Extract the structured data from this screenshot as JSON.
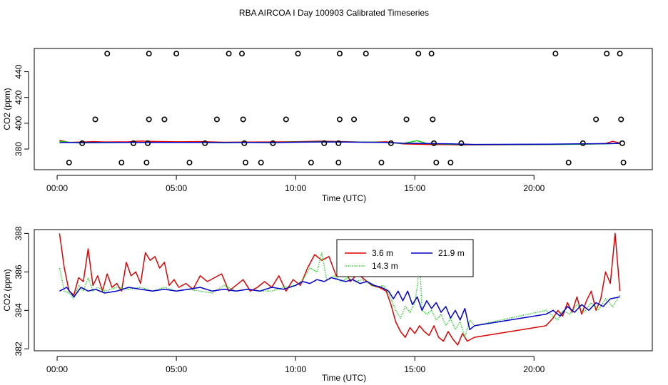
{
  "title": "RBA AIRCOA I  Day 100903  Calibrated Timeseries",
  "colors": {
    "s1": "#e00000",
    "s2": "#00cc00",
    "s3": "#0000cc",
    "axis": "#000000"
  },
  "chart_data": [
    {
      "type": "scatter+line",
      "ylabel": "CO2 (ppm)",
      "xlabel": "Time (UTC)",
      "xlim": [
        -0.96,
        24.96
      ],
      "ylim": [
        364,
        458
      ],
      "x_ticks": [
        0,
        5,
        10,
        15,
        20
      ],
      "x_tick_labels": [
        "00:00",
        "05:00",
        "10:00",
        "15:00",
        "20:00"
      ],
      "y_ticks": [
        380,
        400,
        420,
        440
      ],
      "y_tick_labels": [
        "380",
        "400",
        "420",
        "440"
      ],
      "calibration_points": {
        "high": {
          "y": 454,
          "x": [
            2.1,
            3.85,
            5.0,
            7.2,
            7.75,
            10.1,
            11.85,
            12.95,
            15.15,
            15.7,
            20.9,
            23.05,
            23.6
          ]
        },
        "mid": {
          "y": 403,
          "x": [
            1.6,
            3.85,
            4.5,
            6.7,
            7.8,
            9.6,
            11.85,
            12.45,
            14.65,
            15.75,
            22.6,
            23.65
          ]
        },
        "low": {
          "y": 384.5,
          "x": [
            1.05,
            3.2,
            3.8,
            6.2,
            7.85,
            9.05,
            11.2,
            11.8,
            14.0,
            15.8,
            16.95,
            22.05,
            23.7
          ]
        },
        "bottom": {
          "y": 369.5,
          "x": [
            0.5,
            2.7,
            3.75,
            5.55,
            7.9,
            8.55,
            10.65,
            11.8,
            13.6,
            15.9,
            16.5,
            21.45,
            23.75
          ]
        }
      },
      "series": [
        {
          "name": "3.6 m",
          "color": "#e00000",
          "x": [
            0.1,
            0.5,
            1.0,
            1.5,
            2.0,
            3.0,
            3.5,
            4.0,
            5.0,
            6.0,
            7.0,
            8.0,
            9.0,
            10.0,
            11.0,
            12.0,
            13.0,
            13.8,
            14.5,
            15.5,
            16.5,
            17.0,
            18.0,
            20.5,
            21.5,
            22.5,
            23.0,
            23.3,
            23.6
          ],
          "values": [
            386.8,
            385.2,
            385.4,
            385.8,
            385.5,
            385.6,
            386.2,
            385.9,
            385.6,
            385.8,
            385.3,
            385.4,
            385.5,
            385.7,
            386.1,
            385.8,
            385.3,
            385.6,
            384.0,
            383.6,
            383.4,
            383.2,
            383.3,
            383.5,
            383.8,
            384.0,
            384.3,
            386.0,
            384.6
          ]
        },
        {
          "name": "14.3 m",
          "color": "#00cc00",
          "x": [
            0.1,
            0.5,
            1.0,
            2.0,
            3.0,
            4.0,
            5.0,
            6.0,
            7.0,
            8.0,
            9.0,
            10.0,
            11.0,
            12.0,
            13.0,
            13.8,
            14.5,
            15.1,
            15.5,
            16.5,
            17.5,
            20.5,
            22.0,
            23.0,
            23.6
          ],
          "values": [
            386.0,
            385.3,
            385.0,
            385.2,
            385.2,
            385.2,
            385.1,
            385.1,
            385.0,
            385.1,
            385.0,
            385.4,
            385.6,
            385.5,
            385.4,
            385.2,
            384.3,
            386.5,
            384.3,
            383.8,
            383.4,
            383.6,
            383.8,
            384.1,
            384.4
          ]
        },
        {
          "name": "21.9 m",
          "color": "#0000cc",
          "x": [
            0.1,
            0.5,
            1.0,
            2.0,
            3.0,
            4.0,
            5.0,
            6.0,
            7.0,
            8.0,
            9.0,
            10.0,
            11.0,
            12.0,
            13.0,
            13.8,
            14.5,
            15.5,
            16.5,
            17.5,
            20.5,
            22.0,
            23.0,
            23.6
          ],
          "values": [
            385.0,
            385.1,
            384.9,
            385.0,
            385.1,
            385.1,
            385.1,
            385.1,
            385.0,
            385.1,
            385.0,
            385.3,
            385.5,
            385.4,
            385.3,
            385.2,
            384.5,
            384.3,
            384.0,
            383.6,
            383.8,
            384.0,
            384.2,
            384.4
          ]
        }
      ]
    },
    {
      "type": "line",
      "ylabel": "CO2 (ppm)",
      "xlabel": "Time (UTC)",
      "xlim": [
        -0.96,
        24.96
      ],
      "ylim": [
        381.9,
        388.2
      ],
      "x_ticks": [
        0,
        5,
        10,
        15,
        20
      ],
      "x_tick_labels": [
        "00:00",
        "05:00",
        "10:00",
        "15:00",
        "20:00"
      ],
      "y_ticks": [
        382,
        384,
        386,
        388
      ],
      "y_tick_labels": [
        "382",
        "384",
        "386",
        "388"
      ],
      "legend": {
        "entries": [
          "3.6 m",
          "14.3 m",
          "21.9 m"
        ],
        "placement": "top-center"
      },
      "series": [
        {
          "name": "3.6 m",
          "color": "#e00000",
          "x": [
            0.1,
            0.3,
            0.5,
            0.7,
            0.9,
            1.1,
            1.3,
            1.5,
            1.7,
            1.9,
            2.1,
            2.3,
            2.5,
            2.7,
            2.9,
            3.1,
            3.3,
            3.5,
            3.7,
            3.9,
            4.1,
            4.3,
            4.5,
            4.7,
            4.9,
            5.1,
            5.4,
            5.7,
            6.0,
            6.3,
            6.6,
            6.9,
            7.2,
            7.5,
            7.8,
            8.1,
            8.4,
            8.7,
            9.0,
            9.3,
            9.6,
            9.9,
            10.2,
            10.5,
            10.8,
            11.1,
            11.4,
            11.7,
            12.0,
            12.3,
            12.6,
            12.9,
            13.2,
            13.5,
            13.8,
            14.0,
            14.2,
            14.4,
            14.6,
            14.8,
            15.0,
            15.2,
            15.4,
            15.6,
            15.8,
            16.0,
            16.2,
            16.4,
            16.6,
            16.8,
            17.0,
            17.2,
            17.5,
            20.5,
            20.8,
            21.0,
            21.2,
            21.4,
            21.6,
            21.8,
            22.0,
            22.2,
            22.4,
            22.6,
            22.8,
            23.0,
            23.2,
            23.4,
            23.6
          ],
          "values": [
            388.0,
            386.2,
            385.0,
            384.8,
            385.7,
            385.5,
            387.2,
            385.3,
            385.8,
            385.0,
            385.9,
            385.2,
            385.4,
            385.0,
            386.5,
            385.8,
            386.0,
            385.4,
            387.0,
            386.6,
            386.8,
            386.2,
            386.5,
            385.3,
            385.6,
            385.2,
            385.4,
            385.1,
            385.8,
            385.5,
            385.7,
            385.9,
            385.0,
            385.3,
            385.6,
            385.0,
            385.2,
            385.5,
            385.2,
            385.8,
            385.0,
            385.6,
            385.3,
            386.2,
            386.9,
            386.6,
            386.8,
            385.8,
            386.3,
            385.5,
            385.9,
            385.6,
            385.3,
            385.2,
            385.0,
            384.3,
            383.4,
            382.9,
            382.6,
            383.1,
            382.8,
            383.2,
            382.9,
            382.7,
            383.2,
            382.6,
            382.4,
            382.9,
            382.5,
            382.2,
            382.8,
            382.4,
            382.6,
            383.2,
            383.6,
            384.0,
            383.7,
            384.4,
            383.9,
            384.7,
            383.8,
            384.5,
            385.0,
            384.0,
            384.6,
            386.0,
            385.4,
            388.0,
            385.0
          ]
        },
        {
          "name": "14.3 m",
          "color": "#00cc00",
          "x": [
            0.1,
            0.3,
            0.5,
            0.7,
            0.9,
            1.1,
            1.3,
            1.5,
            1.7,
            2.0,
            2.5,
            3.0,
            3.5,
            4.0,
            4.5,
            5.0,
            5.5,
            6.0,
            6.5,
            7.0,
            7.5,
            8.0,
            8.5,
            9.0,
            9.5,
            10.0,
            10.3,
            10.6,
            10.9,
            11.1,
            11.3,
            11.6,
            11.9,
            12.2,
            12.5,
            12.8,
            13.1,
            13.4,
            13.7,
            14.0,
            14.2,
            14.4,
            14.6,
            14.8,
            15.0,
            15.1,
            15.2,
            15.3,
            15.5,
            15.7,
            15.9,
            16.1,
            16.3,
            16.5,
            16.7,
            16.9,
            17.1,
            17.3,
            17.5,
            20.5,
            20.8,
            21.0,
            21.2,
            21.5,
            21.8,
            22.1,
            22.4,
            22.7,
            23.0,
            23.3,
            23.6
          ],
          "values": [
            386.2,
            385.0,
            384.9,
            384.6,
            385.3,
            385.0,
            385.7,
            385.0,
            385.2,
            385.0,
            385.2,
            385.1,
            385.2,
            385.0,
            385.2,
            385.0,
            385.1,
            385.0,
            384.9,
            385.3,
            385.0,
            385.1,
            385.0,
            385.0,
            385.2,
            385.3,
            385.6,
            386.2,
            386.0,
            387.0,
            385.6,
            385.8,
            385.5,
            385.7,
            385.5,
            385.6,
            385.4,
            385.2,
            385.3,
            384.6,
            384.0,
            383.6,
            384.2,
            383.9,
            384.4,
            385.2,
            386.7,
            384.0,
            383.8,
            384.0,
            383.5,
            383.8,
            383.2,
            383.6,
            383.0,
            383.4,
            382.6,
            383.5,
            383.2,
            384.0,
            383.7,
            383.5,
            384.0,
            383.8,
            384.3,
            383.9,
            384.4,
            384.0,
            384.6,
            384.2,
            384.8
          ]
        },
        {
          "name": "21.9 m",
          "color": "#0000cc",
          "x": [
            0.1,
            0.4,
            0.7,
            1.0,
            1.3,
            1.6,
            2.0,
            2.5,
            3.0,
            3.5,
            4.0,
            4.5,
            5.0,
            5.5,
            6.0,
            6.5,
            7.0,
            7.5,
            8.0,
            8.5,
            9.0,
            9.5,
            10.0,
            10.3,
            10.6,
            10.9,
            11.2,
            11.5,
            11.8,
            12.1,
            12.4,
            12.7,
            13.0,
            13.3,
            13.6,
            13.9,
            14.1,
            14.3,
            14.5,
            14.7,
            14.9,
            15.1,
            15.3,
            15.5,
            15.7,
            15.9,
            16.1,
            16.3,
            16.5,
            16.7,
            16.9,
            17.1,
            17.3,
            17.5,
            20.5,
            20.8,
            21.1,
            21.4,
            21.7,
            22.0,
            22.3,
            22.6,
            22.9,
            23.2,
            23.6
          ],
          "values": [
            385.0,
            385.2,
            384.7,
            385.2,
            385.0,
            385.1,
            384.9,
            385.0,
            385.2,
            385.1,
            385.0,
            385.1,
            385.0,
            385.1,
            385.2,
            385.0,
            385.1,
            385.0,
            385.1,
            385.0,
            385.2,
            385.1,
            385.3,
            385.5,
            385.4,
            385.6,
            385.5,
            385.7,
            385.6,
            385.5,
            385.6,
            385.4,
            385.5,
            385.3,
            385.2,
            385.0,
            384.6,
            385.0,
            384.5,
            385.0,
            384.3,
            384.7,
            384.0,
            384.5,
            384.1,
            384.4,
            383.9,
            384.2,
            383.6,
            384.0,
            383.5,
            384.1,
            383.0,
            383.2,
            383.8,
            384.0,
            383.7,
            384.2,
            383.9,
            384.3,
            384.0,
            384.4,
            384.2,
            384.6,
            384.7
          ]
        }
      ]
    }
  ]
}
